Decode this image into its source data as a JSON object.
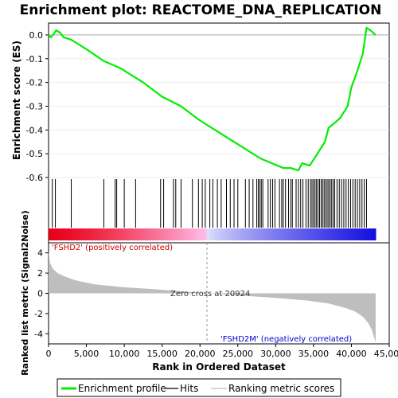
{
  "title": "Enrichment plot: REACTOME_DNA_REPLICATION",
  "colors": {
    "es_line": "#00ee00",
    "hits": "#000000",
    "metric_fill": "#bebebe",
    "red": "#e8001a",
    "blue": "#1a10dd"
  },
  "chart_data": [
    {
      "type": "line",
      "ylabel": "Enrichment score (ES)",
      "ylim": [
        -0.6,
        0.05
      ],
      "yticks": [
        "0.0",
        "-0.1",
        "-0.2",
        "-0.3",
        "-0.4",
        "-0.5",
        "-0.6"
      ],
      "xlim": [
        0,
        45000
      ],
      "series": [
        {
          "name": "Enrichment profile",
          "x": [
            0,
            300,
            600,
            1000,
            1500,
            2000,
            3000,
            3500,
            5000,
            7300,
            8800,
            9500,
            11000,
            12500,
            15000,
            17500,
            20000,
            22500,
            25000,
            27000,
            28000,
            29500,
            31000,
            32000,
            33000,
            33500,
            34500,
            35500,
            36500,
            37000,
            37800,
            38500,
            39500,
            40000,
            40800,
            41500,
            42000,
            42500,
            43200
          ],
          "y": [
            0.0,
            -0.01,
            0.0,
            0.02,
            0.01,
            -0.01,
            -0.02,
            -0.03,
            -0.06,
            -0.11,
            -0.13,
            -0.14,
            -0.17,
            -0.2,
            -0.26,
            -0.3,
            -0.36,
            -0.41,
            -0.46,
            -0.5,
            -0.52,
            -0.54,
            -0.56,
            -0.56,
            -0.57,
            -0.54,
            -0.55,
            -0.5,
            -0.45,
            -0.39,
            -0.37,
            -0.35,
            -0.3,
            -0.22,
            -0.15,
            -0.08,
            0.03,
            0.02,
            0.0
          ]
        }
      ]
    },
    {
      "type": "line",
      "series": [
        {
          "name": "Hits",
          "x": [
            500,
            900,
            3000,
            7300,
            8800,
            9000,
            10000,
            11500,
            14800,
            15200,
            16500,
            16800,
            17500,
            19000,
            19800,
            20300,
            20700,
            21300,
            21700,
            22300,
            22800,
            23500,
            24000,
            24500,
            25000,
            26000,
            26500,
            27000,
            27500,
            27700,
            27900,
            28100,
            28300,
            29000,
            29300,
            29600,
            29900,
            30500,
            30800,
            31000,
            31300,
            31700,
            32000,
            32200,
            32700,
            33000,
            33300,
            33600,
            34000,
            34300,
            34600,
            34800,
            35000,
            35200,
            35400,
            35600,
            35800,
            36000,
            36200,
            36400,
            36600,
            36800,
            37000,
            37200,
            37400,
            37600,
            37800,
            38100,
            38400,
            38700,
            39000,
            39300,
            39600,
            39900,
            40200,
            40500,
            40800,
            41100,
            41400,
            41700,
            42000
          ]
        }
      ]
    },
    {
      "type": "area",
      "ylabel": "Ranked list metric (Signal2Noise)",
      "xlabel": "Rank in Ordered Dataset",
      "ylim": [
        -5,
        5
      ],
      "yticks": [
        "4",
        "2",
        "0",
        "-2",
        "-4"
      ],
      "xticks": [
        "0",
        "5,000",
        "10,000",
        "15,000",
        "20,000",
        "25,000",
        "30,000",
        "35,000",
        "40,000",
        "45,000"
      ],
      "series": [
        {
          "name": "Ranking metric scores",
          "x": [
            0,
            200,
            600,
            1200,
            2000,
            3500,
            6000,
            10000,
            15000,
            20924,
            26000,
            30000,
            34000,
            37000,
            39000,
            40500,
            41500,
            42200,
            42700,
            43100,
            43200
          ],
          "y": [
            4.2,
            3.0,
            2.4,
            2.0,
            1.7,
            1.3,
            0.9,
            0.6,
            0.35,
            0.0,
            -0.25,
            -0.45,
            -0.7,
            -1.0,
            -1.4,
            -1.8,
            -2.3,
            -2.9,
            -3.6,
            -4.6,
            -4.9
          ]
        }
      ]
    }
  ],
  "annotations": {
    "positive": "'FSHD2' (positively correlated)",
    "negative": "'FSHD2M' (negatively correlated)",
    "zero_cross": "Zero cross at 20924",
    "zero_cross_rank": 20924
  },
  "legend": {
    "items": [
      "Enrichment profile",
      "Hits",
      "Ranking metric scores"
    ]
  }
}
